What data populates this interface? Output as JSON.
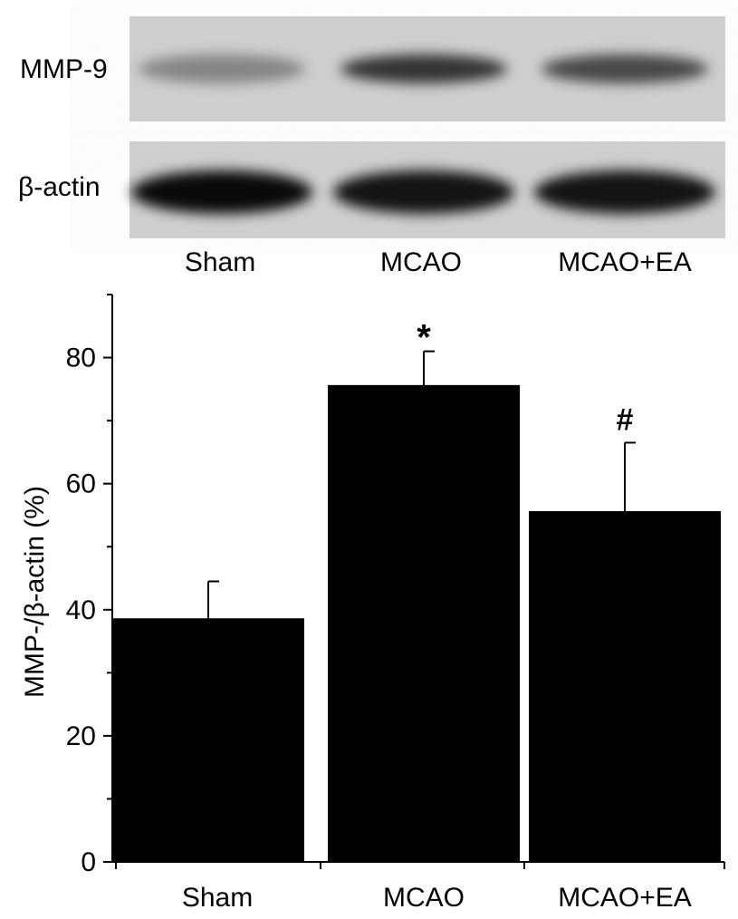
{
  "blot": {
    "rows": [
      {
        "label": "MMP-9",
        "intensities": [
          0.35,
          0.75,
          0.65
        ]
      },
      {
        "label": "β-actin",
        "intensities": [
          0.95,
          0.9,
          0.9
        ]
      }
    ],
    "lanes": [
      "Sham",
      "MCAO",
      "MCAO+EA"
    ]
  },
  "chart_data": {
    "type": "bar",
    "categories": [
      "Sham",
      "MCAO",
      "MCAO+EA"
    ],
    "values": [
      38.5,
      75.5,
      55.5
    ],
    "errors": [
      6,
      5.5,
      11
    ],
    "annotations": [
      "",
      "*",
      "#"
    ],
    "ylabel": "MMP-/β-actin (%)",
    "xlabel": "",
    "ylim": [
      0,
      90
    ],
    "yticks": [
      0,
      20,
      40,
      60,
      80
    ],
    "grid": false,
    "bar_color": "#000000"
  }
}
